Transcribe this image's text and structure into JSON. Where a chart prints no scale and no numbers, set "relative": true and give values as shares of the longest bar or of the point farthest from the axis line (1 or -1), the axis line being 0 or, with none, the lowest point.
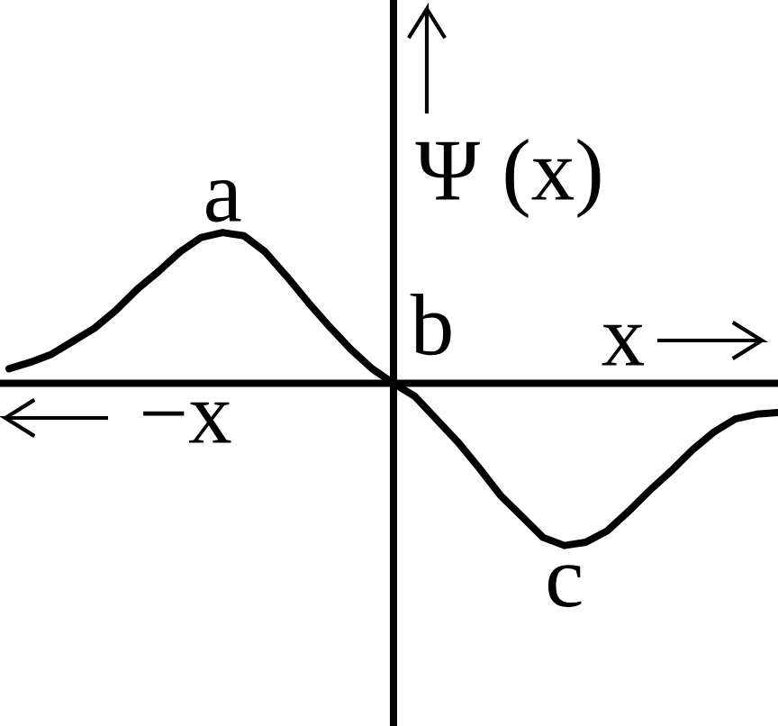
{
  "chart_data": {
    "type": "line",
    "relative": true,
    "categories": [
      null,
      null,
      null,
      null,
      null,
      null,
      null,
      null,
      null,
      null,
      null,
      null,
      null,
      null,
      null,
      null,
      null,
      null,
      null,
      null,
      null,
      null,
      null,
      null,
      null,
      null,
      null,
      null,
      null,
      null,
      null,
      null,
      null,
      null,
      null,
      null,
      null
    ],
    "series": [
      {
        "color": "#000000",
        "values": [
          0.09,
          0.13,
          0.18,
          0.26,
          0.34,
          0.45,
          0.58,
          0.69,
          0.81,
          0.9,
          0.93,
          0.91,
          0.81,
          0.66,
          0.5,
          0.35,
          0.21,
          0.09,
          0,
          -0.08,
          -0.22,
          -0.36,
          -0.52,
          -0.69,
          -0.82,
          -0.95,
          -1,
          -0.98,
          -0.91,
          -0.79,
          -0.66,
          -0.54,
          -0.41,
          -0.3,
          -0.22,
          -0.19,
          -0.18
        ]
      }
    ],
    "xlabel": "x",
    "ylabel": "Ψ (x)",
    "annotations": [
      {
        "text": "a",
        "y": 0.93
      },
      "b",
      {
        "text": "c",
        "y": -1
      },
      "−x"
    ]
  }
}
